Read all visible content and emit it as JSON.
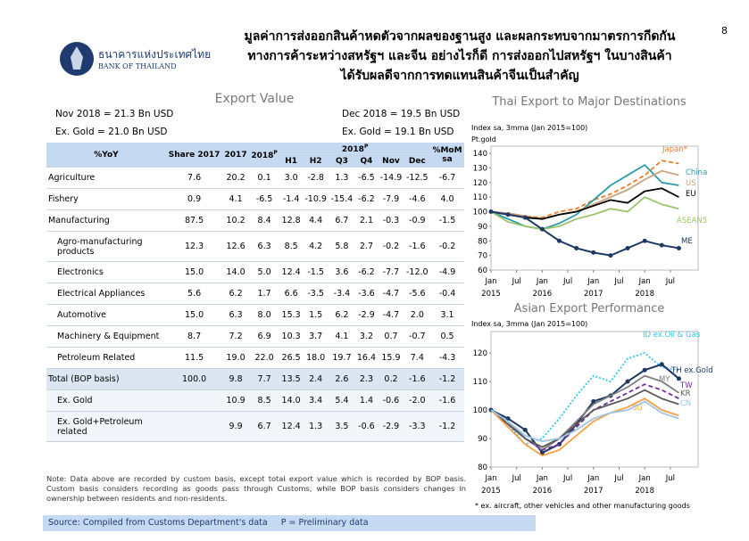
{
  "header": {
    "bank_thai": "ธนาคารแห่งประเทศไทย",
    "bank_en": "BANK OF THAILAND",
    "title_lines": [
      "มูลค่าการส่งออกสินค้าหดตัวจากผลของฐานสูง และผลกระทบจากมาตรการกีดกัน",
      "ทางการค้าระหว่างสหรัฐฯ และจีน อย่างไรก็ดี การส่งออกไปสหรัฐฯ ในบางสินค้า",
      "ได้รับผลดีจากการทดแทนสินค้าจีนเป็นสำคัญ"
    ],
    "page": "8"
  },
  "section_title": "Export Value",
  "summary": {
    "nov_total": "Nov 2018 = 21.3 Bn USD",
    "nov_ex_gold": "Ex. Gold = 21.0 Bn USD",
    "dec_total": "Dec 2018 = 19.5 Bn USD",
    "dec_ex_gold": "Ex. Gold = 19.1 Bn USD"
  },
  "table": {
    "corner": "%YoY",
    "columns": [
      "Share 2017",
      "2017",
      "2018"
    ],
    "column_sup": "P",
    "group": "2018",
    "group_sup": "P",
    "subcolumns": [
      "H1",
      "H2",
      "Q3",
      "Q4",
      "Nov",
      "Dec"
    ],
    "last": "%MoM sa",
    "rows": [
      [
        "Agriculture",
        "7.6",
        "20.2",
        "0.1",
        "3.0",
        "-2.8",
        "1.3",
        "-6.5",
        "-14.9",
        "-12.5",
        "-6.7"
      ],
      [
        "Fishery",
        "0.9",
        "4.1",
        "-6.5",
        "-1.4",
        "-10.9",
        "-15.4",
        "-6.2",
        "-7.9",
        "-4.6",
        "4.0"
      ],
      [
        "Manufacturing",
        "87.5",
        "10.2",
        "8.4",
        "12.8",
        "4.4",
        "6.7",
        "2.1",
        "-0.3",
        "-0.9",
        "-1.5"
      ],
      [
        "Agro-manufacturing products",
        "12.3",
        "12.6",
        "6.3",
        "8.5",
        "4.2",
        "5.8",
        "2.7",
        "-0.2",
        "-1.6",
        "-0.2"
      ],
      [
        "Electronics",
        "15.0",
        "14.0",
        "5.0",
        "12.4",
        "-1.5",
        "3.6",
        "-6.2",
        "-7.7",
        "-12.0",
        "-4.9"
      ],
      [
        "Electrical Appliances",
        "5.6",
        "6.2",
        "1.7",
        "6.6",
        "-3.5",
        "-3.4",
        "-3.6",
        "-4.7",
        "-5.6",
        "-0.4"
      ],
      [
        "Automotive",
        "15.0",
        "6.3",
        "8.0",
        "15.3",
        "1.5",
        "6.2",
        "-2.9",
        "-4.7",
        "2.0",
        "3.1"
      ],
      [
        "Machinery & Equipment",
        "8.7",
        "7.2",
        "6.9",
        "10.3",
        "3.7",
        "4.1",
        "3.2",
        "0.7",
        "-0.7",
        "0.5"
      ],
      [
        "Petroleum Related",
        "11.5",
        "19.0",
        "22.0",
        "26.5",
        "18.0",
        "19.7",
        "16.4",
        "15.9",
        "7.4",
        "-4.3"
      ],
      [
        "Total (BOP basis)",
        "100.0",
        "9.8",
        "7.7",
        "13.5",
        "2.4",
        "2.6",
        "2.3",
        "0.2",
        "-1.6",
        "-1.2"
      ],
      [
        "Ex. Gold",
        null,
        "10.9",
        "8.5",
        "14.0",
        "3.4",
        "5.4",
        "1.4",
        "-0.6",
        "-2.0",
        "-1.6"
      ],
      [
        "Ex. Gold+Petroleum related",
        null,
        "9.9",
        "6.7",
        "12.4",
        "1.3",
        "3.5",
        "-0.6",
        "-2.9",
        "-3.3",
        "-1.2"
      ]
    ]
  },
  "note": "Note: Data above are recorded by custom basis, except total export value which is recorded by BOP basis. Custom basis considers recording as goods pass through Customs, while BOP basis considers changes in ownership between residents and non-residents.",
  "source": "Source: Compiled from Customs Department's data     P = Preliminary data",
  "chart_data": [
    {
      "type": "line",
      "title": "Thai Export to Major Destinations",
      "subtitle": "Index sa, 3mma (Jan 2015=100)",
      "y_unit": "Pt.gold",
      "x": [
        0,
        4,
        8,
        12,
        16,
        20,
        24,
        28,
        32,
        36,
        40,
        44
      ],
      "xlim": [
        0,
        46
      ],
      "xticks": [
        {
          "value": 0,
          "label": "Jan"
        },
        {
          "value": 6,
          "label": "Jul"
        },
        {
          "value": 12,
          "label": "Jan"
        },
        {
          "value": 18,
          "label": "Jul"
        },
        {
          "value": 24,
          "label": "Jan"
        },
        {
          "value": 30,
          "label": "Jul"
        },
        {
          "value": 36,
          "label": "Jan"
        },
        {
          "value": 42,
          "label": "Jul"
        }
      ],
      "years": [
        {
          "value": 0,
          "label": "2015"
        },
        {
          "value": 12,
          "label": "2016"
        },
        {
          "value": 24,
          "label": "2017"
        },
        {
          "value": 36,
          "label": "2018"
        }
      ],
      "ylim": [
        60,
        140
      ],
      "yticks": [
        60,
        70,
        80,
        90,
        100,
        110,
        120,
        130,
        140
      ],
      "series": [
        {
          "name": "Japan*",
          "color": "#f07c28",
          "style": "dashed",
          "values": [
            100,
            98,
            97,
            96,
            100,
            102,
            108,
            112,
            118,
            125,
            135,
            133
          ]
        },
        {
          "name": "China",
          "color": "#2e9aa8",
          "style": "solid",
          "values": [
            100,
            95,
            90,
            88,
            92,
            98,
            108,
            118,
            125,
            132,
            120,
            118
          ]
        },
        {
          "name": "US",
          "color": "#c9a27a",
          "style": "solid",
          "values": [
            100,
            99,
            97,
            95,
            98,
            100,
            105,
            110,
            115,
            122,
            128,
            125
          ]
        },
        {
          "name": "EU",
          "color": "#000000",
          "style": "solid",
          "values": [
            100,
            98,
            96,
            95,
            98,
            100,
            104,
            108,
            106,
            114,
            116,
            110
          ]
        },
        {
          "name": "ASEAN5",
          "color": "#9cc36a",
          "style": "solid",
          "values": [
            100,
            93,
            90,
            88,
            90,
            95,
            98,
            102,
            100,
            110,
            105,
            102
          ]
        },
        {
          "name": "ME",
          "color": "#1f3864",
          "style": "markers",
          "values": [
            100,
            98,
            96,
            88,
            80,
            75,
            72,
            70,
            75,
            80,
            77,
            75
          ]
        }
      ]
    },
    {
      "type": "line",
      "title": "Asian Export Performance",
      "subtitle": "Index sa, 3mma (Jan 2015=100)",
      "x": [
        0,
        4,
        8,
        12,
        16,
        20,
        24,
        28,
        32,
        36,
        40,
        44
      ],
      "xlim": [
        0,
        46
      ],
      "xticks": [
        {
          "value": 0,
          "label": "Jan"
        },
        {
          "value": 6,
          "label": "Jul"
        },
        {
          "value": 12,
          "label": "Jan"
        },
        {
          "value": 18,
          "label": "Jul"
        },
        {
          "value": 24,
          "label": "Jan"
        },
        {
          "value": 30,
          "label": "Jul"
        },
        {
          "value": 36,
          "label": "Jan"
        },
        {
          "value": 42,
          "label": "Jul"
        }
      ],
      "years": [
        {
          "value": 0,
          "label": "2015"
        },
        {
          "value": 12,
          "label": "2016"
        },
        {
          "value": 24,
          "label": "2017"
        },
        {
          "value": 36,
          "label": "2018"
        }
      ],
      "ylim": [
        80,
        125
      ],
      "yticks": [
        80,
        90,
        100,
        110,
        120
      ],
      "footnote": "* ex. aircraft, other vehicles and other manufacturing goods",
      "series": [
        {
          "name": "ID ex.Oil & Gas",
          "color": "#33c3e8",
          "style": "dotted",
          "values": [
            100,
            95,
            88,
            90,
            97,
            105,
            112,
            110,
            118,
            120,
            115,
            114
          ]
        },
        {
          "name": "TH ex.Gold",
          "color": "#1f3864",
          "style": "markers",
          "values": [
            100,
            97,
            93,
            85,
            88,
            95,
            103,
            105,
            110,
            114,
            116,
            111
          ]
        },
        {
          "name": "MY",
          "color": "#7f7f7f",
          "style": "solid",
          "values": [
            100,
            96,
            90,
            86,
            90,
            96,
            102,
            105,
            108,
            112,
            110,
            106
          ]
        },
        {
          "name": "TW",
          "color": "#7030a0",
          "style": "dashed",
          "values": [
            100,
            95,
            90,
            86,
            88,
            94,
            100,
            103,
            106,
            109,
            107,
            104
          ]
        },
        {
          "name": "KR",
          "color": "#595959",
          "style": "solid",
          "values": [
            100,
            95,
            90,
            87,
            90,
            95,
            100,
            102,
            104,
            107,
            104,
            102
          ]
        },
        {
          "name": "SG",
          "color": "#f5a142",
          "style": "solid",
          "values": [
            100,
            94,
            88,
            84,
            86,
            91,
            96,
            99,
            101,
            104,
            100,
            98
          ]
        },
        {
          "name": "CN",
          "color": "#9dc3e6",
          "style": "solid",
          "values": [
            100,
            96,
            91,
            89,
            90,
            93,
            97,
            99,
            100,
            103,
            99,
            97
          ]
        }
      ]
    }
  ]
}
